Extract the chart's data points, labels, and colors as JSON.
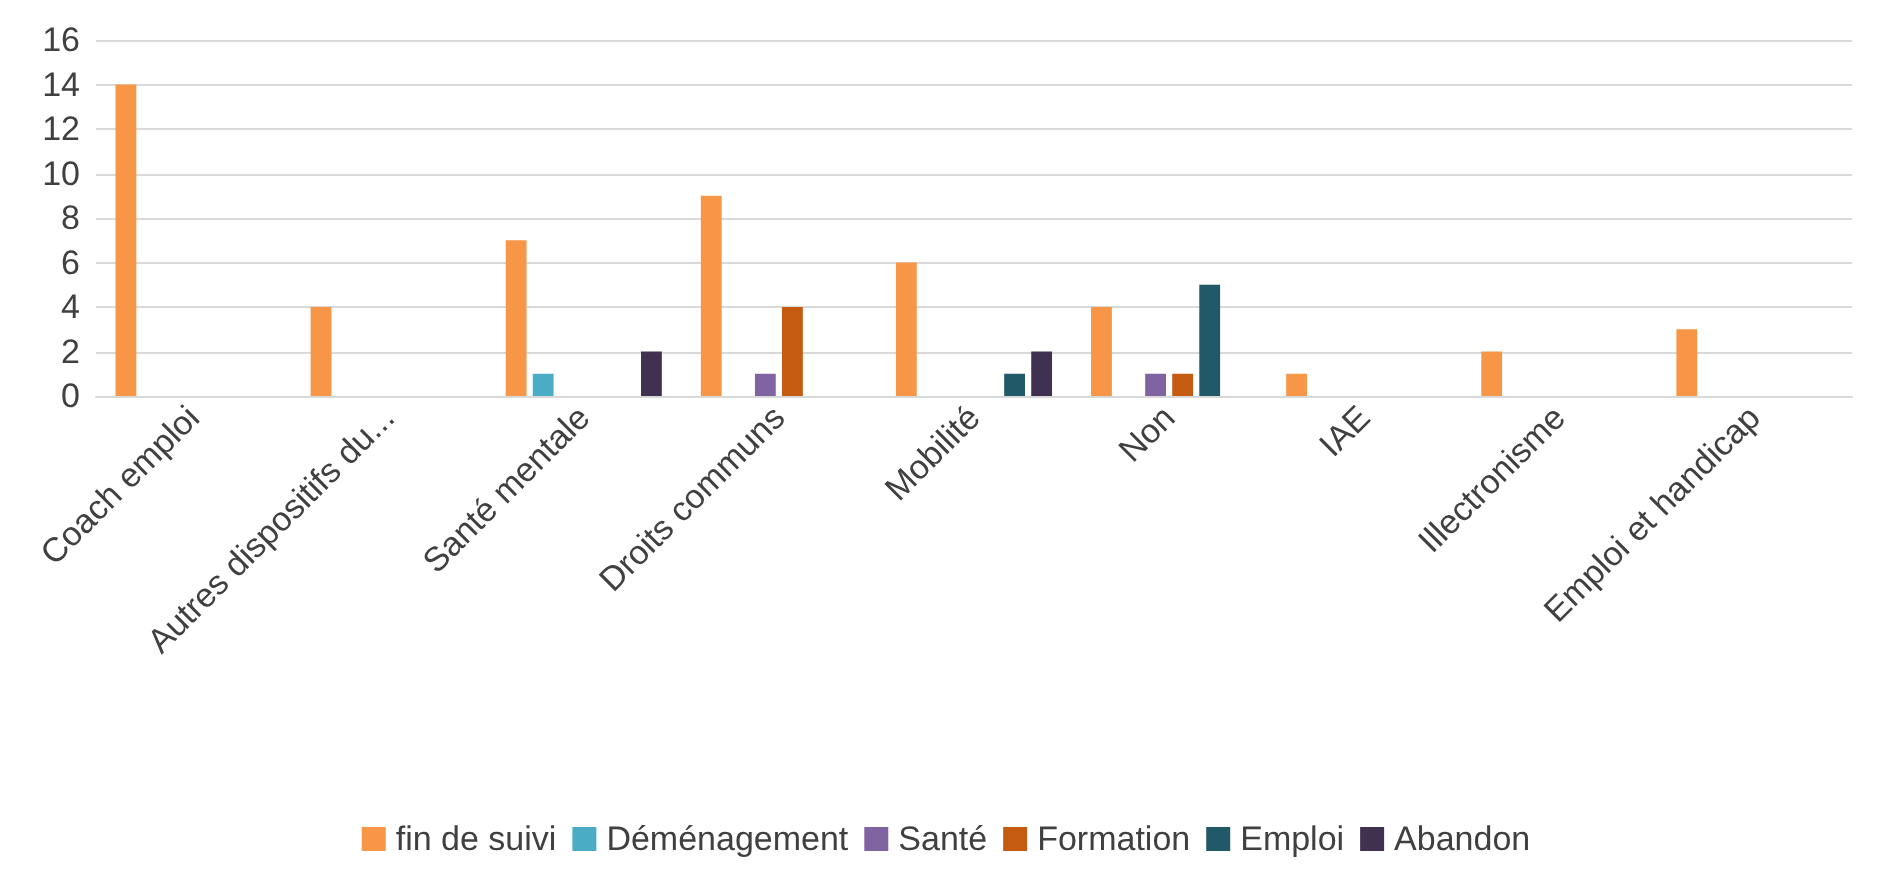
{
  "chart_data": {
    "type": "bar",
    "categories": [
      "Coach emploi",
      "Autres dispositifs du...",
      "Santé mentale",
      "Droits communs",
      "Mobilité",
      "Non",
      "IAE",
      "Illectronisme",
      "Emploi et handicap"
    ],
    "series": [
      {
        "name": "fin de suivi",
        "color": "#f79646",
        "values": [
          14,
          4,
          7,
          9,
          6,
          4,
          1,
          2,
          3
        ]
      },
      {
        "name": "Déménagement",
        "color": "#4bacc6",
        "values": [
          null,
          null,
          1,
          null,
          null,
          null,
          null,
          null,
          null
        ]
      },
      {
        "name": "Santé",
        "color": "#8064a2",
        "values": [
          null,
          null,
          null,
          1,
          null,
          1,
          null,
          null,
          null
        ]
      },
      {
        "name": "Formation",
        "color": "#c55a11",
        "values": [
          null,
          null,
          null,
          4,
          null,
          1,
          null,
          null,
          null
        ]
      },
      {
        "name": "Emploi",
        "color": "#215968",
        "values": [
          null,
          null,
          null,
          null,
          1,
          5,
          null,
          null,
          null
        ]
      },
      {
        "name": "Abandon",
        "color": "#403151",
        "values": [
          null,
          null,
          2,
          null,
          2,
          null,
          null,
          null,
          null
        ]
      }
    ],
    "ylim": [
      0,
      16
    ],
    "yticks": [
      0,
      2,
      4,
      6,
      8,
      10,
      12,
      14,
      16
    ],
    "grid": "y",
    "legend": "bottom"
  }
}
